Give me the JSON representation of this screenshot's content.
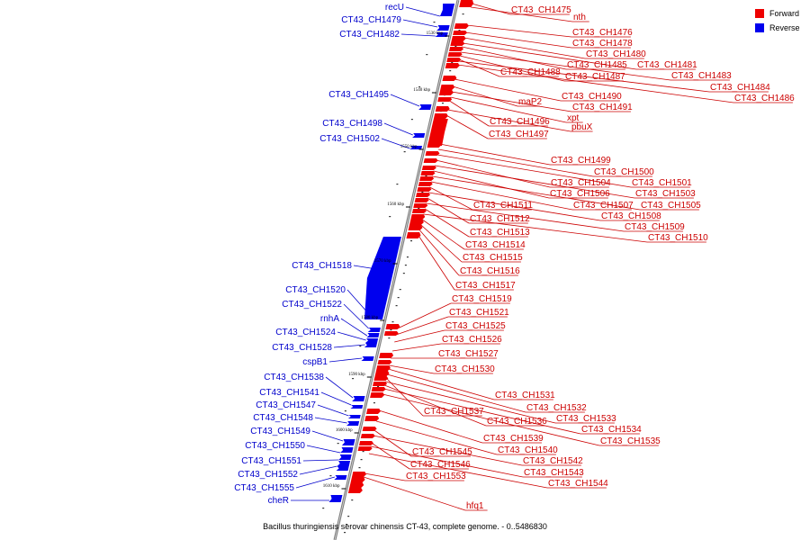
{
  "caption": "Bacillus thuringiensis serovar chinensis CT-43, complete genome. - 0..5486830",
  "legend": [
    {
      "label": "Forward",
      "color": "#ee0000"
    },
    {
      "label": "Reverse",
      "color": "#0000ee"
    }
  ],
  "colors": {
    "forward_text": "#cc0000",
    "reverse_text": "#0000cc",
    "forward_gene": "#ee0000",
    "reverse_gene": "#0000ee",
    "axis": "#7f7f7f"
  },
  "ticks": [
    "1530 kbp",
    "1540 kbp",
    "1550 kbp",
    "1560 kbp",
    "1570 kbp",
    "1580 kbp",
    "1590 kbp",
    "1600 kbp",
    "1610 kbp"
  ],
  "reverse_genes": [
    "recU",
    "CT43_CH1479",
    "CT43_CH1482",
    "CT43_CH1495",
    "CT43_CH1498",
    "CT43_CH1502",
    "CT43_CH1518",
    "CT43_CH1520",
    "CT43_CH1522",
    "rnhA",
    "CT43_CH1524",
    "CT43_CH1528",
    "cspB1",
    "CT43_CH1538",
    "CT43_CH1541",
    "CT43_CH1547",
    "CT43_CH1548",
    "CT43_CH1549",
    "CT43_CH1550",
    "CT43_CH1551",
    "CT43_CH1552",
    "CT43_CH1555",
    "cheR"
  ],
  "forward_genes": [
    "CT43_CH1475",
    "nth",
    "CT43_CH1476",
    "CT43_CH1478",
    "CT43_CH1480",
    "CT43_CH1481",
    "CT43_CH1485",
    "CT43_CH1483",
    "CT43_CH1487",
    "CT43_CH1488",
    "CT43_CH1484",
    "CT43_CH1486",
    "CT43_CH1490",
    "maP2",
    "CT43_CH1491",
    "xpt",
    "CT43_CH1496",
    "pbuX",
    "CT43_CH1497",
    "CT43_CH1499",
    "CT43_CH1500",
    "CT43_CH1501",
    "CT43_CH1504",
    "CT43_CH1503",
    "CT43_CH1506",
    "CT43_CH1505",
    "CT43_CH1507",
    "CT43_CH1511",
    "CT43_CH1508",
    "CT43_CH1512",
    "CT43_CH1509",
    "CT43_CH1513",
    "CT43_CH1510",
    "CT43_CH1514",
    "CT43_CH1515",
    "CT43_CH1516",
    "CT43_CH1517",
    "CT43_CH1519",
    "CT43_CH1521",
    "CT43_CH1525",
    "CT43_CH1526",
    "CT43_CH1527",
    "CT43_CH1530",
    "CT43_CH1531",
    "CT43_CH1532",
    "CT43_CH1537",
    "CT43_CH1533",
    "CT43_CH1536",
    "CT43_CH1534",
    "CT43_CH1535",
    "CT43_CH1539",
    "CT43_CH1540",
    "CT43_CH1545",
    "CT43_CH1542",
    "CT43_CH1546",
    "CT43_CH1543",
    "CT43_CH1553",
    "CT43_CH1544",
    "hfq1"
  ]
}
